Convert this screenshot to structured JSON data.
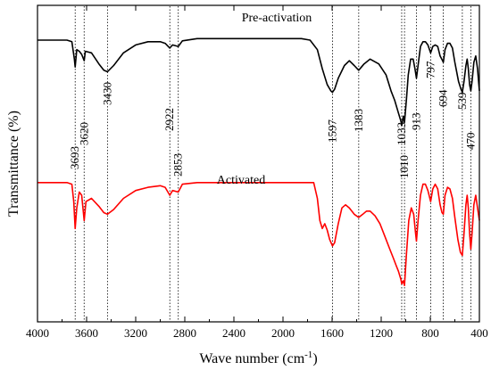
{
  "chart_data": {
    "type": "line",
    "title": "",
    "xlabel": "Wave number (cm⁻¹)",
    "ylabel": "Transmittance (%)",
    "x_reversed": true,
    "xlim": [
      4000,
      400
    ],
    "x_ticks": [
      4000,
      3600,
      3200,
      2800,
      2400,
      2000,
      1600,
      1200,
      800,
      400
    ],
    "y_ticks_shown": false,
    "grid": false,
    "legend": "none",
    "series": [
      {
        "name": "Pre-activation",
        "color": "#000000",
        "points": [
          [
            4000,
            0.11
          ],
          [
            3760,
            0.11
          ],
          [
            3720,
            0.115
          ],
          [
            3700,
            0.17
          ],
          [
            3693,
            0.195
          ],
          [
            3680,
            0.14
          ],
          [
            3660,
            0.145
          ],
          [
            3640,
            0.155
          ],
          [
            3620,
            0.175
          ],
          [
            3610,
            0.145
          ],
          [
            3560,
            0.15
          ],
          [
            3500,
            0.185
          ],
          [
            3460,
            0.205
          ],
          [
            3430,
            0.21
          ],
          [
            3380,
            0.19
          ],
          [
            3300,
            0.15
          ],
          [
            3200,
            0.125
          ],
          [
            3100,
            0.115
          ],
          [
            3000,
            0.115
          ],
          [
            2960,
            0.12
          ],
          [
            2922,
            0.135
          ],
          [
            2900,
            0.125
          ],
          [
            2853,
            0.13
          ],
          [
            2820,
            0.112
          ],
          [
            2700,
            0.105
          ],
          [
            2400,
            0.105
          ],
          [
            2200,
            0.105
          ],
          [
            2000,
            0.105
          ],
          [
            1850,
            0.105
          ],
          [
            1780,
            0.11
          ],
          [
            1720,
            0.14
          ],
          [
            1680,
            0.2
          ],
          [
            1640,
            0.25
          ],
          [
            1610,
            0.27
          ],
          [
            1597,
            0.275
          ],
          [
            1580,
            0.265
          ],
          [
            1550,
            0.23
          ],
          [
            1500,
            0.19
          ],
          [
            1460,
            0.175
          ],
          [
            1420,
            0.19
          ],
          [
            1383,
            0.205
          ],
          [
            1340,
            0.185
          ],
          [
            1290,
            0.17
          ],
          [
            1220,
            0.185
          ],
          [
            1160,
            0.22
          ],
          [
            1120,
            0.27
          ],
          [
            1090,
            0.3
          ],
          [
            1060,
            0.34
          ],
          [
            1040,
            0.365
          ],
          [
            1033,
            0.38
          ],
          [
            1020,
            0.35
          ],
          [
            1010,
            0.37
          ],
          [
            995,
            0.3
          ],
          [
            980,
            0.22
          ],
          [
            960,
            0.17
          ],
          [
            940,
            0.17
          ],
          [
            925,
            0.2
          ],
          [
            913,
            0.23
          ],
          [
            900,
            0.19
          ],
          [
            880,
            0.13
          ],
          [
            860,
            0.115
          ],
          [
            840,
            0.115
          ],
          [
            820,
            0.125
          ],
          [
            797,
            0.15
          ],
          [
            780,
            0.13
          ],
          [
            760,
            0.125
          ],
          [
            740,
            0.13
          ],
          [
            720,
            0.16
          ],
          [
            700,
            0.175
          ],
          [
            694,
            0.18
          ],
          [
            680,
            0.14
          ],
          [
            660,
            0.12
          ],
          [
            640,
            0.12
          ],
          [
            620,
            0.135
          ],
          [
            600,
            0.18
          ],
          [
            570,
            0.24
          ],
          [
            550,
            0.265
          ],
          [
            539,
            0.275
          ],
          [
            525,
            0.24
          ],
          [
            510,
            0.19
          ],
          [
            500,
            0.17
          ],
          [
            490,
            0.2
          ],
          [
            480,
            0.25
          ],
          [
            470,
            0.27
          ],
          [
            460,
            0.24
          ],
          [
            445,
            0.18
          ],
          [
            430,
            0.16
          ],
          [
            415,
            0.2
          ],
          [
            400,
            0.27
          ]
        ]
      },
      {
        "name": "Activated",
        "color": "#ff0000",
        "points": [
          [
            4000,
            0.56
          ],
          [
            3760,
            0.56
          ],
          [
            3720,
            0.565
          ],
          [
            3705,
            0.62
          ],
          [
            3693,
            0.705
          ],
          [
            3680,
            0.64
          ],
          [
            3660,
            0.59
          ],
          [
            3640,
            0.6
          ],
          [
            3620,
            0.68
          ],
          [
            3605,
            0.62
          ],
          [
            3560,
            0.61
          ],
          [
            3500,
            0.635
          ],
          [
            3460,
            0.655
          ],
          [
            3430,
            0.66
          ],
          [
            3380,
            0.645
          ],
          [
            3300,
            0.61
          ],
          [
            3200,
            0.585
          ],
          [
            3100,
            0.575
          ],
          [
            3000,
            0.57
          ],
          [
            2960,
            0.575
          ],
          [
            2922,
            0.6
          ],
          [
            2900,
            0.585
          ],
          [
            2853,
            0.59
          ],
          [
            2820,
            0.565
          ],
          [
            2700,
            0.56
          ],
          [
            2400,
            0.56
          ],
          [
            2200,
            0.56
          ],
          [
            2000,
            0.56
          ],
          [
            1800,
            0.56
          ],
          [
            1750,
            0.56
          ],
          [
            1720,
            0.61
          ],
          [
            1700,
            0.68
          ],
          [
            1680,
            0.705
          ],
          [
            1660,
            0.69
          ],
          [
            1640,
            0.71
          ],
          [
            1620,
            0.74
          ],
          [
            1597,
            0.76
          ],
          [
            1580,
            0.75
          ],
          [
            1550,
            0.69
          ],
          [
            1520,
            0.64
          ],
          [
            1490,
            0.63
          ],
          [
            1460,
            0.64
          ],
          [
            1420,
            0.66
          ],
          [
            1383,
            0.67
          ],
          [
            1350,
            0.66
          ],
          [
            1320,
            0.65
          ],
          [
            1290,
            0.65
          ],
          [
            1250,
            0.665
          ],
          [
            1210,
            0.69
          ],
          [
            1170,
            0.73
          ],
          [
            1130,
            0.77
          ],
          [
            1100,
            0.8
          ],
          [
            1080,
            0.82
          ],
          [
            1060,
            0.84
          ],
          [
            1040,
            0.865
          ],
          [
            1033,
            0.88
          ],
          [
            1020,
            0.87
          ],
          [
            1010,
            0.885
          ],
          [
            995,
            0.79
          ],
          [
            975,
            0.68
          ],
          [
            955,
            0.64
          ],
          [
            935,
            0.66
          ],
          [
            920,
            0.72
          ],
          [
            913,
            0.745
          ],
          [
            900,
            0.68
          ],
          [
            880,
            0.6
          ],
          [
            860,
            0.565
          ],
          [
            840,
            0.565
          ],
          [
            820,
            0.585
          ],
          [
            797,
            0.62
          ],
          [
            780,
            0.58
          ],
          [
            760,
            0.565
          ],
          [
            740,
            0.58
          ],
          [
            720,
            0.63
          ],
          [
            705,
            0.655
          ],
          [
            694,
            0.66
          ],
          [
            680,
            0.6
          ],
          [
            660,
            0.575
          ],
          [
            640,
            0.58
          ],
          [
            620,
            0.61
          ],
          [
            600,
            0.67
          ],
          [
            575,
            0.74
          ],
          [
            555,
            0.78
          ],
          [
            539,
            0.79
          ],
          [
            525,
            0.72
          ],
          [
            510,
            0.63
          ],
          [
            500,
            0.6
          ],
          [
            490,
            0.64
          ],
          [
            480,
            0.72
          ],
          [
            470,
            0.77
          ],
          [
            460,
            0.72
          ],
          [
            445,
            0.63
          ],
          [
            430,
            0.6
          ],
          [
            415,
            0.64
          ],
          [
            400,
            0.68
          ]
        ]
      }
    ],
    "annotations": [
      {
        "x": 3693,
        "text": "3693"
      },
      {
        "x": 3620,
        "text": "3620"
      },
      {
        "x": 3430,
        "text": "3430"
      },
      {
        "x": 2922,
        "text": "2922"
      },
      {
        "x": 2853,
        "text": "2853"
      },
      {
        "x": 1597,
        "text": "1597"
      },
      {
        "x": 1383,
        "text": "1383"
      },
      {
        "x": 1033,
        "text": "1033"
      },
      {
        "x": 1010,
        "text": "1010"
      },
      {
        "x": 913,
        "text": "913"
      },
      {
        "x": 797,
        "text": "797"
      },
      {
        "x": 694,
        "text": "694"
      },
      {
        "x": 539,
        "text": "539"
      },
      {
        "x": 470,
        "text": "470"
      }
    ]
  }
}
